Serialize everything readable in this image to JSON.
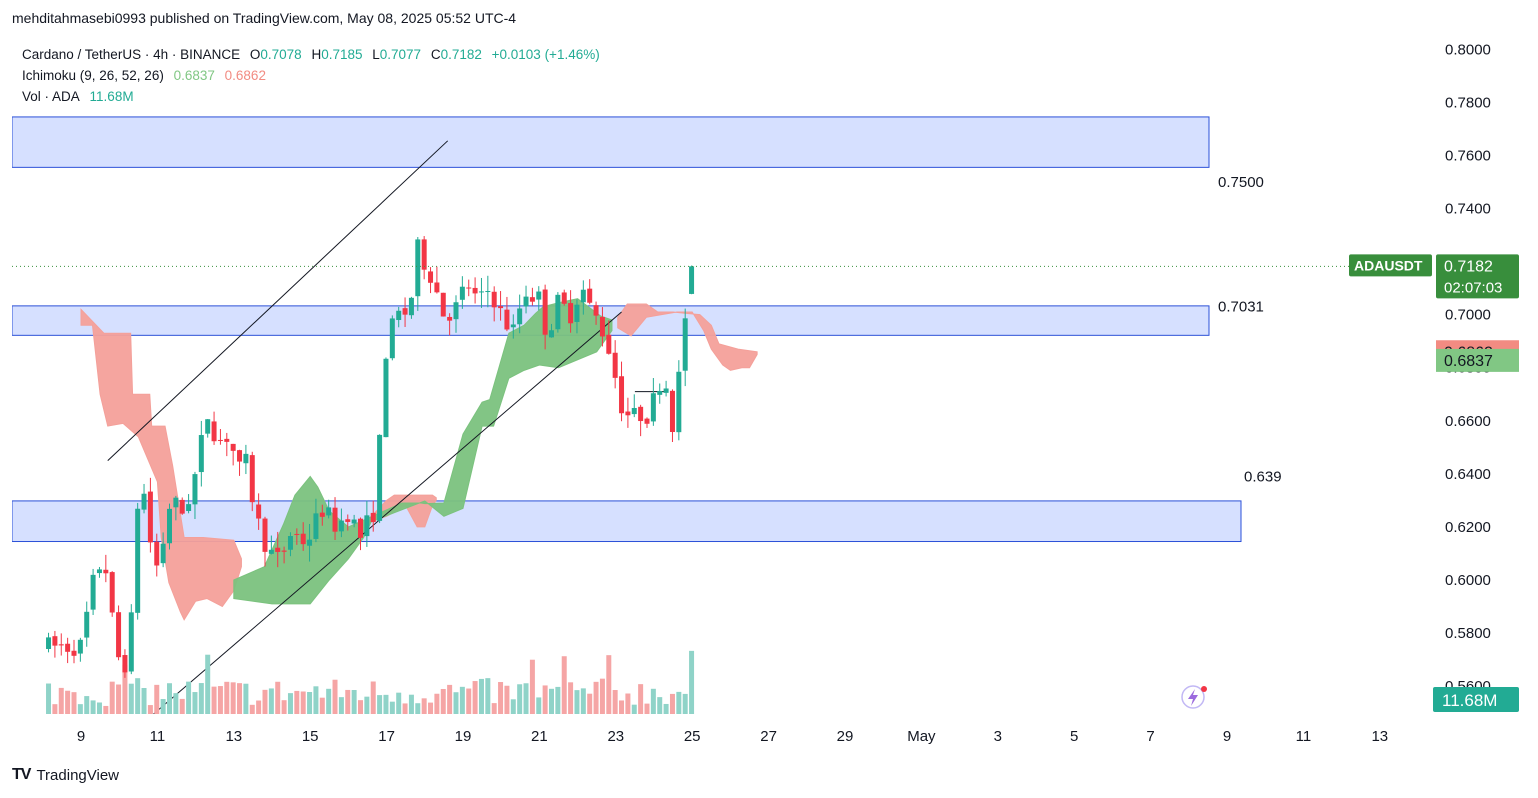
{
  "publish_line": "mehditahmasebi0993 published on TradingView.com, May 08, 2025 05:52 UTC-4",
  "legend": {
    "symbol_line": {
      "symbol": "Cardano / TetherUS · 4h · BINANCE",
      "o_label": "O",
      "o": "0.7078",
      "h_label": "H",
      "h": "0.7185",
      "l_label": "L",
      "l": "0.7077",
      "c_label": "C",
      "c": "0.7182",
      "change": "+0.0103 (+1.46%)"
    },
    "ichimoku": {
      "label": "Ichimoku (9, 26, 52, 26)",
      "v1": "0.6837",
      "v2": "0.6862"
    },
    "volume": {
      "label": "Vol · ADA",
      "value": "11.68M"
    }
  },
  "footer": {
    "logo": "TV",
    "brand": "TradingView"
  },
  "colors": {
    "up": "#22ab94",
    "down": "#f23645",
    "vol_up": "#8fd3c8",
    "vol_down": "#f5a5a5",
    "cloud_bull": "#7bc27e",
    "cloud_bear": "#f4a09a",
    "zone_fill": "#d6e0ff",
    "zone_stroke": "#2b50d8",
    "badge_green": "#388e3c",
    "badge_red": "#f28b82",
    "badge_lightgreen": "#81c784",
    "vol_badge": "#22ab94"
  },
  "chart_data": {
    "type": "candlestick",
    "title": "Cardano / TetherUS · 4h · BINANCE",
    "y_axis": {
      "ticks": [
        "0.8000",
        "0.7800",
        "0.7600",
        "0.7400",
        "0.7200",
        "0.7000",
        "0.6800",
        "0.6600",
        "0.6400",
        "0.6200",
        "0.6000",
        "0.5800",
        "0.5600"
      ],
      "ylim": [
        0.5495,
        0.805
      ]
    },
    "x_axis": {
      "ticks": [
        "9",
        "11",
        "13",
        "15",
        "17",
        "19",
        "21",
        "23",
        "25",
        "27",
        "29",
        "May",
        "3",
        "5",
        "7",
        "9",
        "11",
        "13"
      ]
    },
    "last_price": {
      "label": "ADAUSDT",
      "price": "0.7182",
      "countdown": "02:07:03",
      "value": 0.7182
    },
    "ichimoku_badges": [
      {
        "text": "0.6862",
        "value": 0.6862
      },
      {
        "text": "0.6837",
        "value": 0.6837
      }
    ],
    "volume_badge": "11.68M",
    "zones": [
      {
        "label": "0.7500",
        "top": 0.7745,
        "bottom": 0.7555
      },
      {
        "label": "0.7031",
        "top": 0.7033,
        "bottom": 0.6922
      },
      {
        "label": "0.639",
        "top": 0.6298,
        "bottom": 0.6145
      }
    ],
    "trendlines": [
      {
        "name": "upper-channel",
        "points": [
          [
            0.7,
            0.645
          ],
          [
            9.6,
            0.7655
          ]
        ]
      },
      {
        "name": "lower-channel",
        "points": [
          [
            1.9,
            0.5495
          ],
          [
            14.15,
            0.701
          ]
        ]
      }
    ],
    "candle_path": [
      [
        0.0,
        0.575
      ],
      [
        0.3,
        0.598
      ],
      [
        0.6,
        0.61
      ],
      [
        0.9,
        0.575
      ],
      [
        1.1,
        0.565
      ],
      [
        1.3,
        0.58
      ],
      [
        1.5,
        0.633
      ],
      [
        1.7,
        0.632
      ],
      [
        1.9,
        0.602
      ],
      [
        2.1,
        0.61
      ],
      [
        2.3,
        0.628
      ],
      [
        2.5,
        0.628
      ],
      [
        2.7,
        0.625
      ],
      [
        3.0,
        0.64
      ],
      [
        3.3,
        0.663
      ],
      [
        3.6,
        0.652
      ],
      [
        3.9,
        0.655
      ],
      [
        4.1,
        0.64
      ],
      [
        4.3,
        0.645
      ],
      [
        4.6,
        0.623
      ],
      [
        4.9,
        0.611
      ],
      [
        5.2,
        0.607
      ],
      [
        5.5,
        0.618
      ],
      [
        5.9,
        0.614
      ],
      [
        6.3,
        0.627
      ],
      [
        6.7,
        0.62
      ],
      [
        7.0,
        0.626
      ],
      [
        7.3,
        0.616
      ],
      [
        7.7,
        0.627
      ],
      [
        8.0,
        0.69
      ],
      [
        8.3,
        0.7
      ],
      [
        8.6,
        0.701
      ],
      [
        8.8,
        0.725
      ],
      [
        9.2,
        0.714
      ],
      [
        9.5,
        0.7
      ],
      [
        9.8,
        0.702
      ],
      [
        10.1,
        0.712
      ],
      [
        10.4,
        0.704
      ],
      [
        10.7,
        0.71
      ],
      [
        11.0,
        0.7
      ],
      [
        11.3,
        0.693
      ],
      [
        11.6,
        0.709
      ],
      [
        12.0,
        0.706
      ],
      [
        12.2,
        0.692
      ],
      [
        12.5,
        0.705
      ],
      [
        12.8,
        0.7
      ],
      [
        13.1,
        0.711
      ],
      [
        13.3,
        0.703
      ],
      [
        13.6,
        0.696
      ],
      [
        13.9,
        0.684
      ],
      [
        14.1,
        0.667
      ],
      [
        14.4,
        0.661
      ],
      [
        14.7,
        0.663
      ],
      [
        14.9,
        0.662
      ],
      [
        15.1,
        0.675
      ],
      [
        15.3,
        0.675
      ],
      [
        15.5,
        0.658
      ],
      [
        15.7,
        0.682
      ],
      [
        15.9,
        0.712
      ],
      [
        16.1,
        0.718
      ]
    ],
    "cloud_bull": {
      "top": [
        [
          4.0,
          0.6
        ],
        [
          4.8,
          0.605
        ],
        [
          5.3,
          0.621
        ],
        [
          5.6,
          0.632
        ],
        [
          6.0,
          0.639
        ],
        [
          6.2,
          0.635
        ],
        [
          6.5,
          0.626
        ],
        [
          7.0,
          0.62
        ],
        [
          8.4,
          0.629
        ],
        [
          8.9,
          0.629
        ],
        [
          9.0,
          0.6288
        ],
        [
          9.5,
          0.629
        ],
        [
          10.0,
          0.655
        ],
        [
          10.5,
          0.667
        ],
        [
          10.7,
          0.668
        ],
        [
          11.2,
          0.693
        ],
        [
          11.6,
          0.696
        ],
        [
          11.9,
          0.7005
        ],
        [
          12.1,
          0.703
        ],
        [
          12.5,
          0.7045
        ],
        [
          13.0,
          0.706
        ],
        [
          13.6,
          0.6995
        ],
        [
          13.9,
          0.698
        ]
      ],
      "bottom": [
        [
          4.0,
          0.593
        ],
        [
          5.0,
          0.591
        ],
        [
          6.0,
          0.591
        ],
        [
          6.5,
          0.6
        ],
        [
          7.0,
          0.608
        ],
        [
          7.4,
          0.616
        ],
        [
          7.6,
          0.622
        ],
        [
          9.0,
          0.6298
        ],
        [
          9.5,
          0.624
        ],
        [
          10.0,
          0.627
        ],
        [
          10.5,
          0.658
        ],
        [
          10.8,
          0.658
        ],
        [
          11.2,
          0.676
        ],
        [
          11.6,
          0.679
        ],
        [
          12.0,
          0.681
        ],
        [
          12.5,
          0.68
        ],
        [
          13.0,
          0.683
        ],
        [
          13.5,
          0.686
        ],
        [
          13.9,
          0.694
        ]
      ]
    },
    "cloud_bear": [
      {
        "top": [
          [
            0.0,
            0.702
          ],
          [
            0.6,
            0.693
          ],
          [
            1.3,
            0.693
          ],
          [
            1.35,
            0.67
          ],
          [
            1.8,
            0.67
          ],
          [
            1.85,
            0.658
          ],
          [
            2.2,
            0.658
          ],
          [
            2.4,
            0.643
          ],
          [
            2.7,
            0.616
          ],
          [
            3.2,
            0.616
          ],
          [
            4.0,
            0.615
          ],
          [
            4.2,
            0.608
          ]
        ],
        "bottom": [
          [
            0.0,
            0.696
          ],
          [
            0.3,
            0.696
          ],
          [
            0.5,
            0.67
          ],
          [
            0.7,
            0.658
          ],
          [
            1.1,
            0.659
          ],
          [
            1.5,
            0.654
          ],
          [
            2.0,
            0.637
          ],
          [
            2.1,
            0.616
          ],
          [
            2.3,
            0.599
          ],
          [
            2.6,
            0.588
          ],
          [
            2.7,
            0.585
          ],
          [
            3.0,
            0.592
          ],
          [
            3.3,
            0.593
          ],
          [
            3.7,
            0.59
          ],
          [
            4.0,
            0.596
          ],
          [
            4.2,
            0.605
          ]
        ]
      },
      {
        "top": [
          [
            7.6,
            0.624
          ],
          [
            8.0,
            0.63
          ],
          [
            8.2,
            0.632
          ],
          [
            9.2,
            0.632
          ],
          [
            9.3,
            0.631
          ]
        ],
        "bottom": [
          [
            7.6,
            0.622
          ],
          [
            8.0,
            0.624
          ],
          [
            8.5,
            0.628
          ],
          [
            8.8,
            0.62
          ],
          [
            9.0,
            0.62
          ],
          [
            9.2,
            0.628
          ],
          [
            9.3,
            0.63
          ]
        ]
      },
      {
        "top": [
          [
            14.05,
            0.699
          ],
          [
            14.3,
            0.704
          ],
          [
            14.8,
            0.704
          ],
          [
            15.1,
            0.701
          ],
          [
            15.5,
            0.701
          ],
          [
            15.8,
            0.7005
          ],
          [
            16.2,
            0.7
          ],
          [
            16.5,
            0.696
          ],
          [
            16.7,
            0.689
          ],
          [
            17.2,
            0.687
          ],
          [
            17.7,
            0.686
          ]
        ],
        "bottom": [
          [
            14.05,
            0.695
          ],
          [
            14.4,
            0.692
          ],
          [
            14.8,
            0.699
          ],
          [
            15.2,
            0.7
          ],
          [
            15.6,
            0.701
          ],
          [
            16.0,
            0.701
          ],
          [
            16.3,
            0.694
          ],
          [
            16.5,
            0.687
          ],
          [
            16.8,
            0.681
          ],
          [
            17.0,
            0.679
          ],
          [
            17.3,
            0.68
          ],
          [
            17.5,
            0.68
          ],
          [
            17.7,
            0.685
          ]
        ]
      }
    ],
    "horizontal_level": {
      "x0": 14.5,
      "x1": 15.3,
      "value": 0.671
    }
  }
}
